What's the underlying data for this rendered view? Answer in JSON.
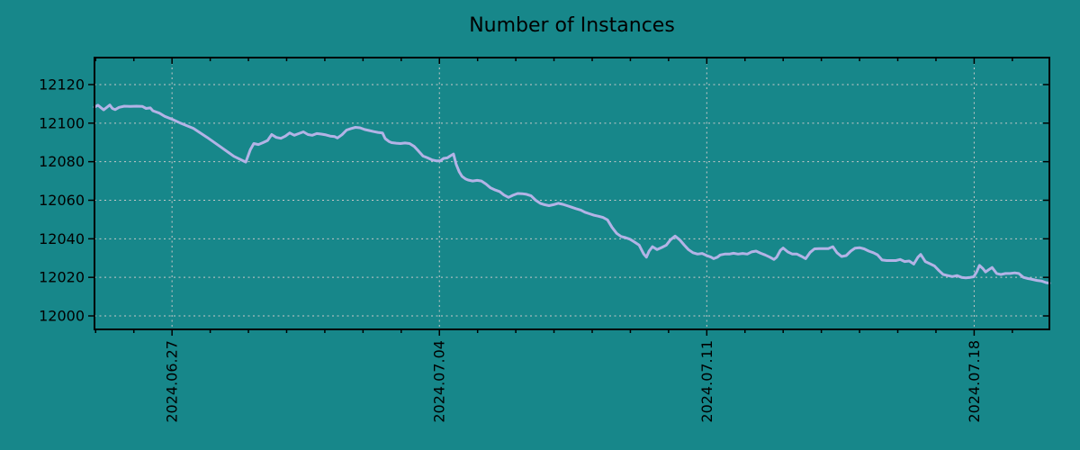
{
  "page": {
    "background_color": "#17878a"
  },
  "chart_data": {
    "type": "line",
    "title": "Number of Instances",
    "xlabel": "",
    "ylabel": "",
    "legend": "none",
    "grid": {
      "style": "dashed",
      "color": "#c9c9c9"
    },
    "axes_color": "#000000",
    "x_axis": {
      "kind": "date",
      "day_zero_date": "2024.06.25",
      "range": [
        0,
        25
      ],
      "major_ticks": [
        {
          "pos": 2.03,
          "label": "2024.06.27"
        },
        {
          "pos": 9.03,
          "label": "2024.07.04"
        },
        {
          "pos": 16.03,
          "label": "2024.07.11"
        },
        {
          "pos": 23.03,
          "label": "2024.07.18"
        }
      ],
      "minor_tick_interval": 1,
      "minor_tick_phase": 0.03
    },
    "y_axis": {
      "range": [
        11993,
        12134
      ],
      "major_ticks": [
        12000,
        12020,
        12040,
        12060,
        12080,
        12100,
        12120
      ]
    },
    "series": [
      {
        "name": "Number of Instances",
        "color": "#b3b3e6",
        "line_width": 3,
        "points": [
          [
            0.0,
            12108.3
          ],
          [
            0.09,
            12109.3
          ],
          [
            0.17,
            12108.0
          ],
          [
            0.24,
            12106.9
          ],
          [
            0.31,
            12108.0
          ],
          [
            0.4,
            12109.4
          ],
          [
            0.47,
            12107.6
          ],
          [
            0.54,
            12107.0
          ],
          [
            0.64,
            12108.2
          ],
          [
            0.78,
            12108.8
          ],
          [
            0.94,
            12108.7
          ],
          [
            1.1,
            12108.8
          ],
          [
            1.25,
            12108.7
          ],
          [
            1.35,
            12107.6
          ],
          [
            1.46,
            12107.9
          ],
          [
            1.53,
            12106.4
          ],
          [
            1.7,
            12105.2
          ],
          [
            1.84,
            12103.5
          ],
          [
            2.03,
            12102.0
          ],
          [
            2.22,
            12100.3
          ],
          [
            2.4,
            12098.8
          ],
          [
            2.59,
            12097.3
          ],
          [
            2.95,
            12092.6
          ],
          [
            3.3,
            12087.7
          ],
          [
            3.65,
            12082.8
          ],
          [
            3.96,
            12079.8
          ],
          [
            4.08,
            12086.3
          ],
          [
            4.17,
            12089.4
          ],
          [
            4.29,
            12088.9
          ],
          [
            4.41,
            12089.9
          ],
          [
            4.53,
            12091.0
          ],
          [
            4.64,
            12094.1
          ],
          [
            4.76,
            12092.6
          ],
          [
            4.88,
            12092.1
          ],
          [
            5.0,
            12093.3
          ],
          [
            5.11,
            12094.9
          ],
          [
            5.23,
            12093.7
          ],
          [
            5.35,
            12094.6
          ],
          [
            5.47,
            12095.5
          ],
          [
            5.59,
            12094.1
          ],
          [
            5.7,
            12093.7
          ],
          [
            5.82,
            12094.6
          ],
          [
            5.94,
            12094.3
          ],
          [
            6.06,
            12093.9
          ],
          [
            6.17,
            12093.3
          ],
          [
            6.29,
            12093.0
          ],
          [
            6.36,
            12092.3
          ],
          [
            6.48,
            12094.0
          ],
          [
            6.6,
            12096.4
          ],
          [
            6.72,
            12097.2
          ],
          [
            6.83,
            12097.8
          ],
          [
            6.95,
            12097.6
          ],
          [
            7.07,
            12096.7
          ],
          [
            7.19,
            12096.2
          ],
          [
            7.31,
            12095.6
          ],
          [
            7.42,
            12095.2
          ],
          [
            7.54,
            12094.9
          ],
          [
            7.61,
            12092.0
          ],
          [
            7.71,
            12090.5
          ],
          [
            7.78,
            12089.9
          ],
          [
            7.9,
            12089.6
          ],
          [
            8.01,
            12089.4
          ],
          [
            8.13,
            12089.7
          ],
          [
            8.25,
            12089.4
          ],
          [
            8.37,
            12087.9
          ],
          [
            8.48,
            12085.6
          ],
          [
            8.6,
            12082.9
          ],
          [
            8.72,
            12082.0
          ],
          [
            8.84,
            12080.9
          ],
          [
            8.96,
            12080.4
          ],
          [
            9.05,
            12080.4
          ],
          [
            9.14,
            12081.7
          ],
          [
            9.24,
            12082.0
          ],
          [
            9.31,
            12082.9
          ],
          [
            9.4,
            12084.0
          ],
          [
            9.47,
            12078.6
          ],
          [
            9.55,
            12074.7
          ],
          [
            9.62,
            12072.4
          ],
          [
            9.71,
            12071.1
          ],
          [
            9.78,
            12070.5
          ],
          [
            9.9,
            12070.0
          ],
          [
            10.02,
            12070.3
          ],
          [
            10.13,
            12070.0
          ],
          [
            10.25,
            12068.4
          ],
          [
            10.37,
            12066.4
          ],
          [
            10.49,
            12065.3
          ],
          [
            10.61,
            12064.5
          ],
          [
            10.72,
            12062.7
          ],
          [
            10.84,
            12061.5
          ],
          [
            10.96,
            12062.6
          ],
          [
            11.08,
            12063.5
          ],
          [
            11.19,
            12063.4
          ],
          [
            11.31,
            12063.1
          ],
          [
            11.43,
            12062.3
          ],
          [
            11.55,
            12060.0
          ],
          [
            11.67,
            12058.4
          ],
          [
            11.78,
            12057.7
          ],
          [
            11.9,
            12057.2
          ],
          [
            12.02,
            12057.7
          ],
          [
            12.14,
            12058.4
          ],
          [
            12.26,
            12057.9
          ],
          [
            12.37,
            12057.2
          ],
          [
            12.49,
            12056.4
          ],
          [
            12.61,
            12055.6
          ],
          [
            12.73,
            12054.9
          ],
          [
            12.84,
            12053.8
          ],
          [
            12.96,
            12053.0
          ],
          [
            13.08,
            12052.2
          ],
          [
            13.2,
            12051.7
          ],
          [
            13.31,
            12051.1
          ],
          [
            13.43,
            12049.8
          ],
          [
            13.55,
            12045.9
          ],
          [
            13.67,
            12042.8
          ],
          [
            13.79,
            12041.2
          ],
          [
            13.9,
            12040.6
          ],
          [
            14.02,
            12039.8
          ],
          [
            14.14,
            12038.3
          ],
          [
            14.26,
            12036.7
          ],
          [
            14.38,
            12032.1
          ],
          [
            14.45,
            12030.5
          ],
          [
            14.52,
            12033.6
          ],
          [
            14.61,
            12035.9
          ],
          [
            14.73,
            12034.4
          ],
          [
            14.85,
            12035.5
          ],
          [
            14.97,
            12036.7
          ],
          [
            15.08,
            12039.5
          ],
          [
            15.2,
            12041.4
          ],
          [
            15.32,
            12039.5
          ],
          [
            15.44,
            12036.7
          ],
          [
            15.55,
            12034.4
          ],
          [
            15.67,
            12032.8
          ],
          [
            15.79,
            12032.1
          ],
          [
            15.91,
            12032.4
          ],
          [
            16.03,
            12031.3
          ],
          [
            16.14,
            12030.5
          ],
          [
            16.21,
            12029.7
          ],
          [
            16.31,
            12030.5
          ],
          [
            16.38,
            12031.6
          ],
          [
            16.5,
            12032.1
          ],
          [
            16.62,
            12032.1
          ],
          [
            16.73,
            12032.5
          ],
          [
            16.85,
            12032.1
          ],
          [
            16.97,
            12032.4
          ],
          [
            17.09,
            12032.1
          ],
          [
            17.2,
            12033.2
          ],
          [
            17.32,
            12033.6
          ],
          [
            17.44,
            12032.5
          ],
          [
            17.56,
            12031.6
          ],
          [
            17.68,
            12030.5
          ],
          [
            17.79,
            12029.3
          ],
          [
            17.86,
            12030.5
          ],
          [
            17.96,
            12034.1
          ],
          [
            18.03,
            12035.2
          ],
          [
            18.15,
            12033.2
          ],
          [
            18.27,
            12032.1
          ],
          [
            18.39,
            12032.1
          ],
          [
            18.5,
            12031.0
          ],
          [
            18.62,
            12029.7
          ],
          [
            18.74,
            12033.0
          ],
          [
            18.85,
            12034.8
          ],
          [
            18.97,
            12034.9
          ],
          [
            19.21,
            12034.9
          ],
          [
            19.33,
            12035.9
          ],
          [
            19.44,
            12032.8
          ],
          [
            19.56,
            12030.8
          ],
          [
            19.68,
            12031.3
          ],
          [
            19.8,
            12033.6
          ],
          [
            19.91,
            12035.1
          ],
          [
            20.03,
            12035.4
          ],
          [
            20.15,
            12034.8
          ],
          [
            20.27,
            12033.6
          ],
          [
            20.39,
            12032.8
          ],
          [
            20.5,
            12031.7
          ],
          [
            20.62,
            12029.0
          ],
          [
            20.74,
            12028.7
          ],
          [
            20.98,
            12028.7
          ],
          [
            21.09,
            12029.3
          ],
          [
            21.21,
            12028.2
          ],
          [
            21.33,
            12028.5
          ],
          [
            21.45,
            12026.9
          ],
          [
            21.56,
            12030.5
          ],
          [
            21.63,
            12031.9
          ],
          [
            21.75,
            12028.2
          ],
          [
            21.87,
            12027.1
          ],
          [
            21.99,
            12025.9
          ],
          [
            22.11,
            12023.5
          ],
          [
            22.22,
            12021.5
          ],
          [
            22.34,
            12020.9
          ],
          [
            22.46,
            12020.4
          ],
          [
            22.58,
            12020.9
          ],
          [
            22.7,
            12020.0
          ],
          [
            22.81,
            12019.7
          ],
          [
            22.93,
            12020.0
          ],
          [
            23.02,
            12020.3
          ],
          [
            23.1,
            12023.0
          ],
          [
            23.17,
            12026.2
          ],
          [
            23.26,
            12024.5
          ],
          [
            23.33,
            12022.8
          ],
          [
            23.4,
            12023.8
          ],
          [
            23.5,
            12025.1
          ],
          [
            23.62,
            12022.0
          ],
          [
            23.73,
            12021.5
          ],
          [
            23.85,
            12022.0
          ],
          [
            23.97,
            12022.0
          ],
          [
            24.09,
            12022.3
          ],
          [
            24.2,
            12022.0
          ],
          [
            24.32,
            12020.0
          ],
          [
            24.44,
            12019.4
          ],
          [
            24.56,
            12018.9
          ],
          [
            24.68,
            12018.4
          ],
          [
            24.79,
            12018.1
          ],
          [
            24.91,
            12017.3
          ],
          [
            25.0,
            12017.0
          ]
        ]
      }
    ]
  }
}
